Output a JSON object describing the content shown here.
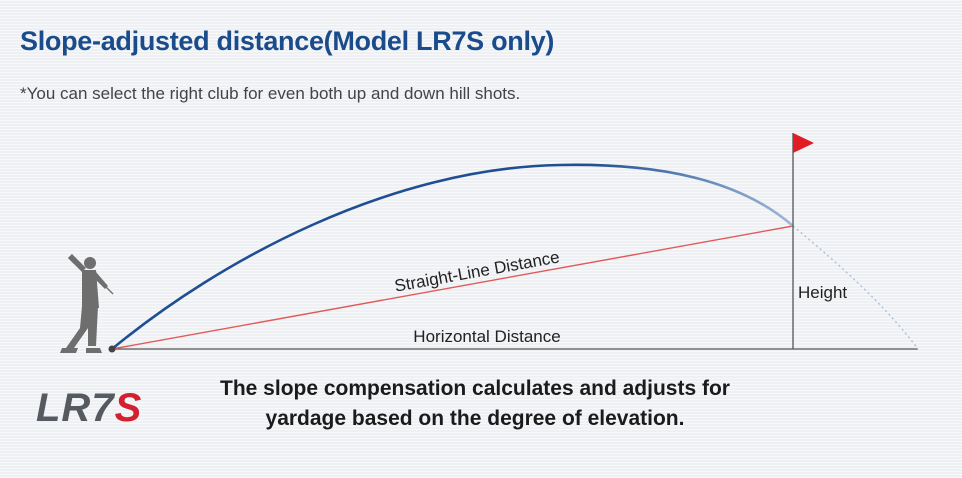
{
  "header": {
    "title": "Slope-adjusted distance(Model LR7S only)",
    "subtitle": "*You can select the right club for even both up and down hill shots."
  },
  "diagram": {
    "labels": {
      "straight_line": "Straight-Line Distance",
      "horizontal": "Horizontal Distance",
      "height": "Height"
    },
    "colors": {
      "trajectory": "#1f4e92",
      "straight_line": "#e05a5a",
      "ground": "#555555",
      "flag": "#e31b23"
    }
  },
  "logo": {
    "text_main": "LR7",
    "text_accent": "S"
  },
  "caption": {
    "line1": "The slope compensation calculates and adjusts for",
    "line2": "yardage based on the degree of elevation."
  }
}
